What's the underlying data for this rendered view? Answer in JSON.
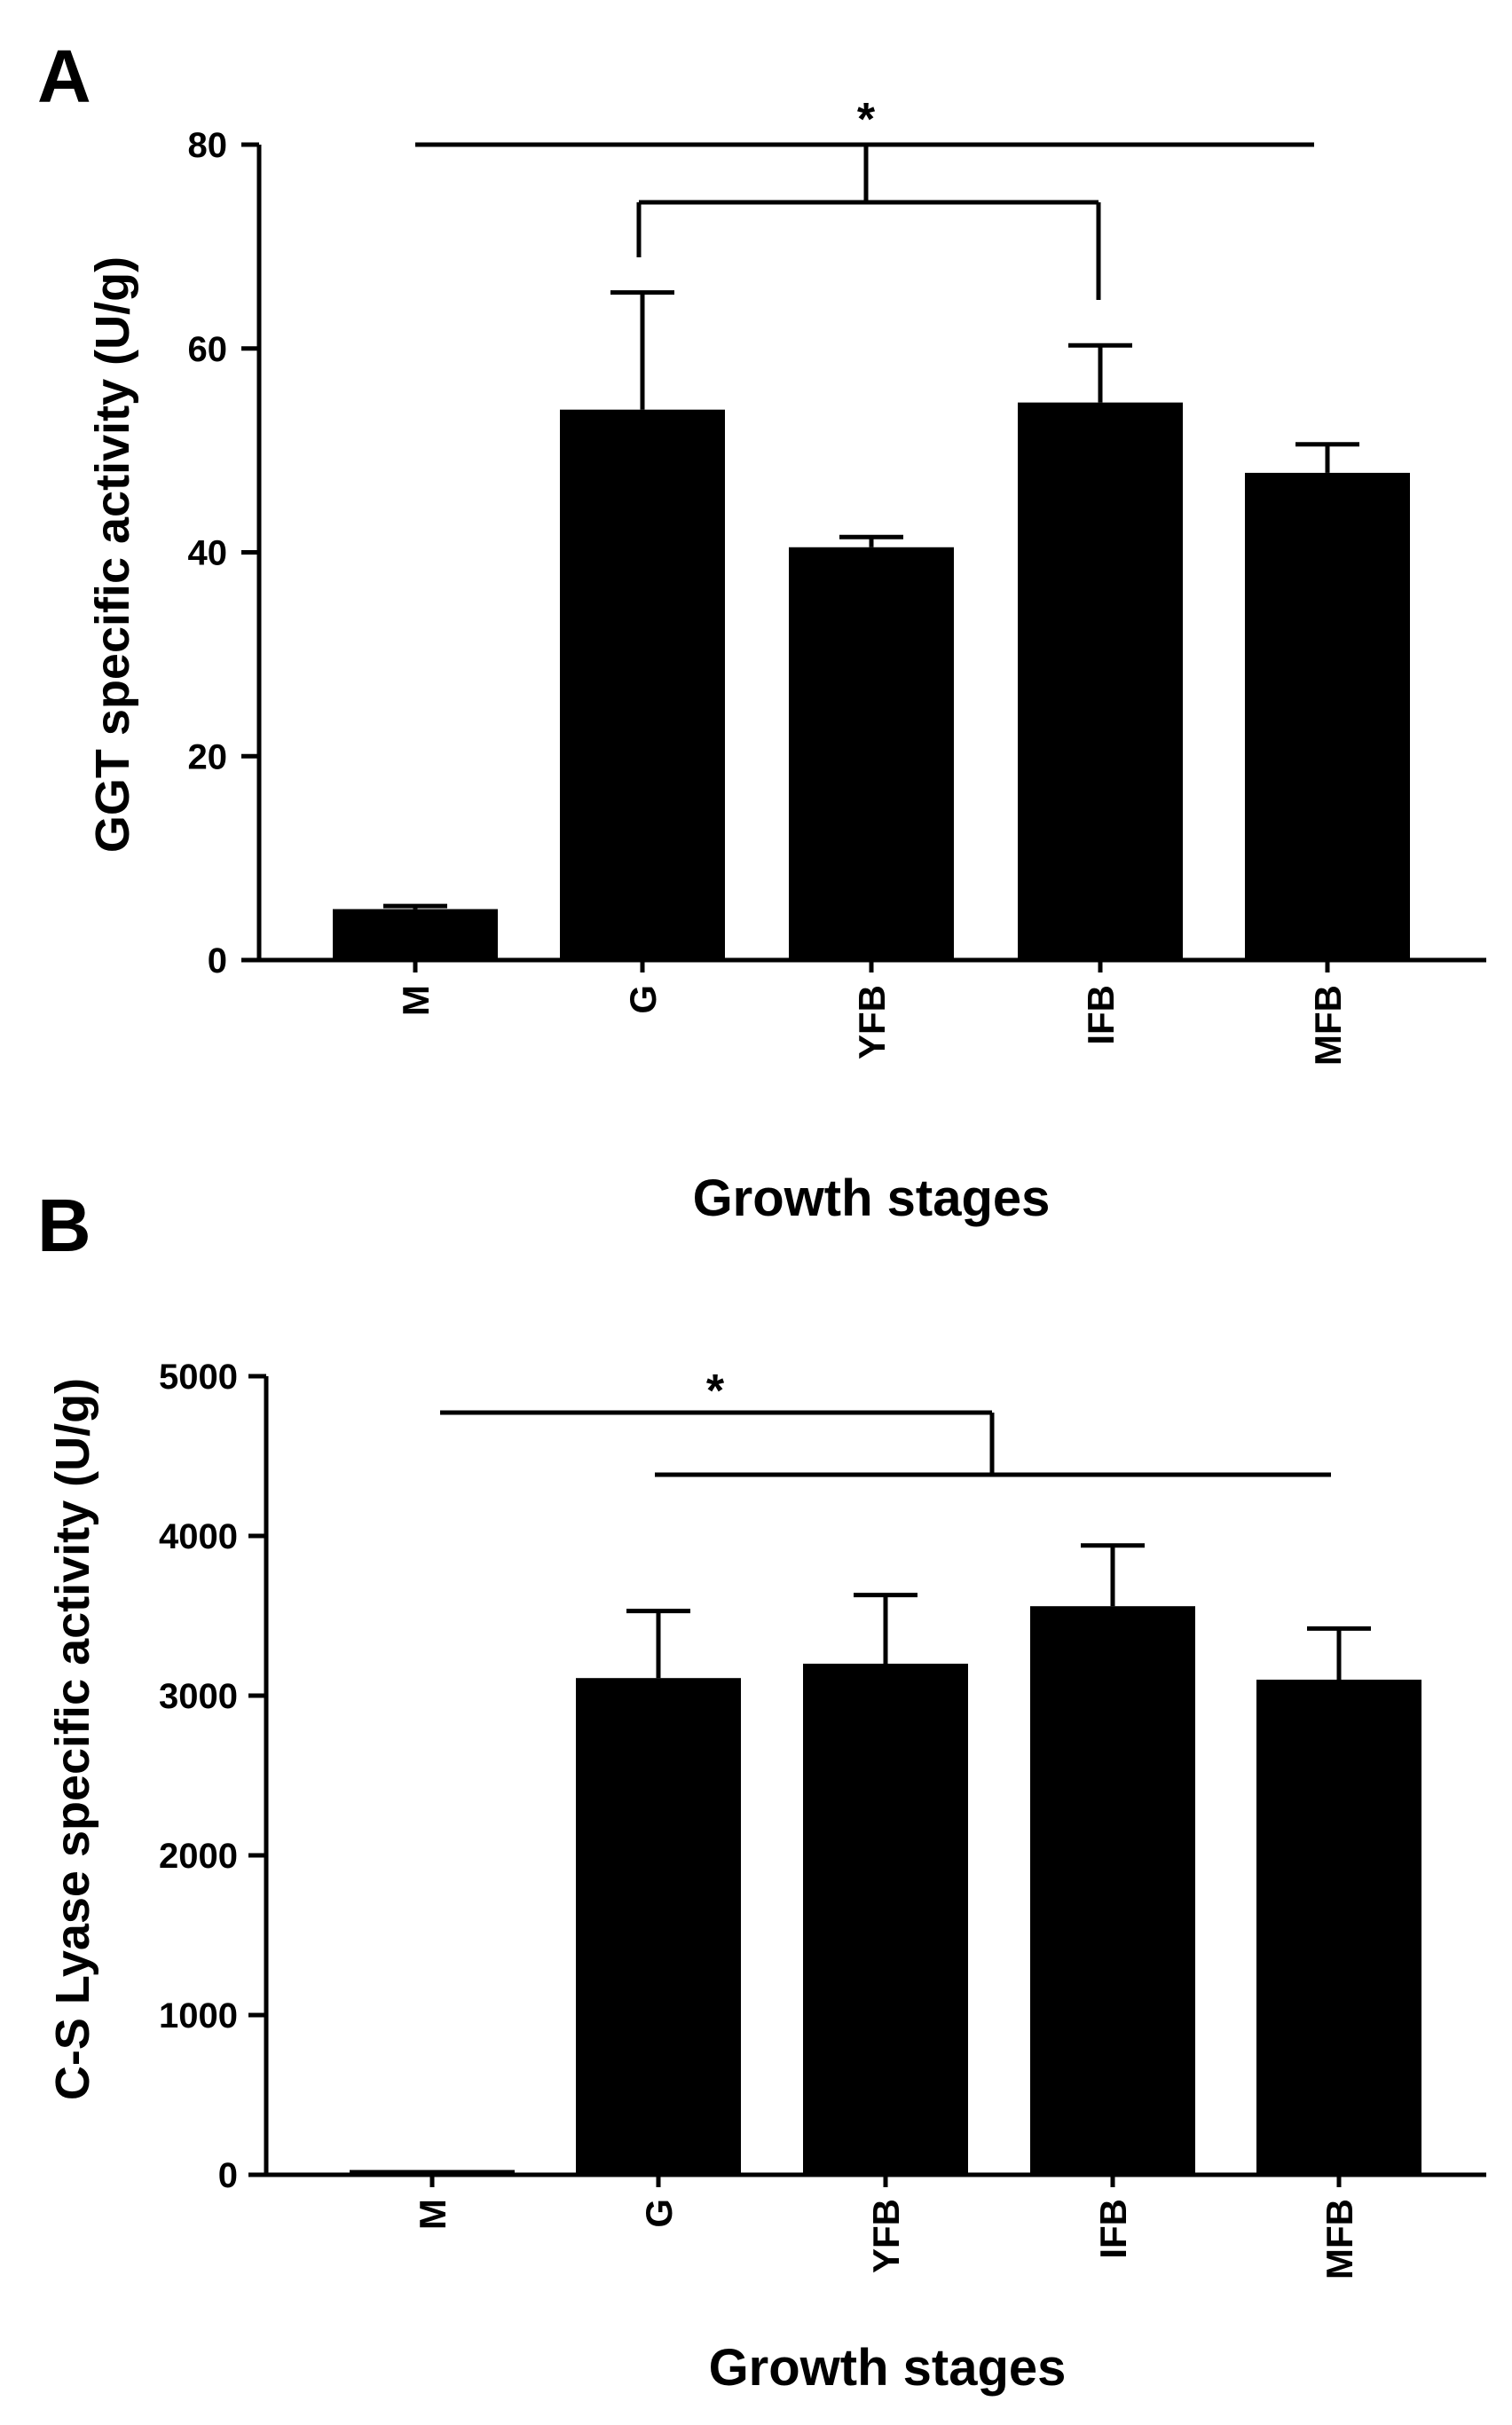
{
  "colors": {
    "bar": "#000000",
    "axis": "#000000",
    "background": "#ffffff"
  },
  "chart_data": [
    {
      "panel_label": "A",
      "type": "bar",
      "categories": [
        "M",
        "G",
        "YFB",
        "IFB",
        "MFB"
      ],
      "values": [
        5,
        54,
        40.5,
        54.7,
        47.8
      ],
      "errors": [
        0.3,
        11.5,
        1.0,
        5.6,
        2.8
      ],
      "xlabel": "Growth stages",
      "ylabel": "GGT specific activity (U/g)",
      "ylim": [
        0,
        80
      ],
      "yticks": [
        0,
        20,
        40,
        60,
        80
      ],
      "ytick_labels": [
        "0",
        "20",
        "40",
        "60",
        "80"
      ],
      "annotations": [
        {
          "type": "significance",
          "label": "*",
          "compares": "M vs G, IFB"
        }
      ]
    },
    {
      "panel_label": "B",
      "type": "bar",
      "categories": [
        "M",
        "G",
        "YFB",
        "IFB",
        "MFB"
      ],
      "values": [
        30,
        3110,
        3200,
        3560,
        3100
      ],
      "errors": [
        0,
        420,
        430,
        380,
        320
      ],
      "xlabel": "Growth stages",
      "ylabel": "C-S Lyase specific activity (U/g)",
      "ylim": [
        0,
        5000
      ],
      "yticks": [
        0,
        1000,
        2000,
        3000,
        4000,
        5000
      ],
      "ytick_labels": [
        "0",
        "1000",
        "2000",
        "3000",
        "4000",
        "5000"
      ],
      "annotations": [
        {
          "type": "significance",
          "label": "*",
          "compares": "M vs G, YFB, IFB, MFB"
        }
      ]
    }
  ]
}
